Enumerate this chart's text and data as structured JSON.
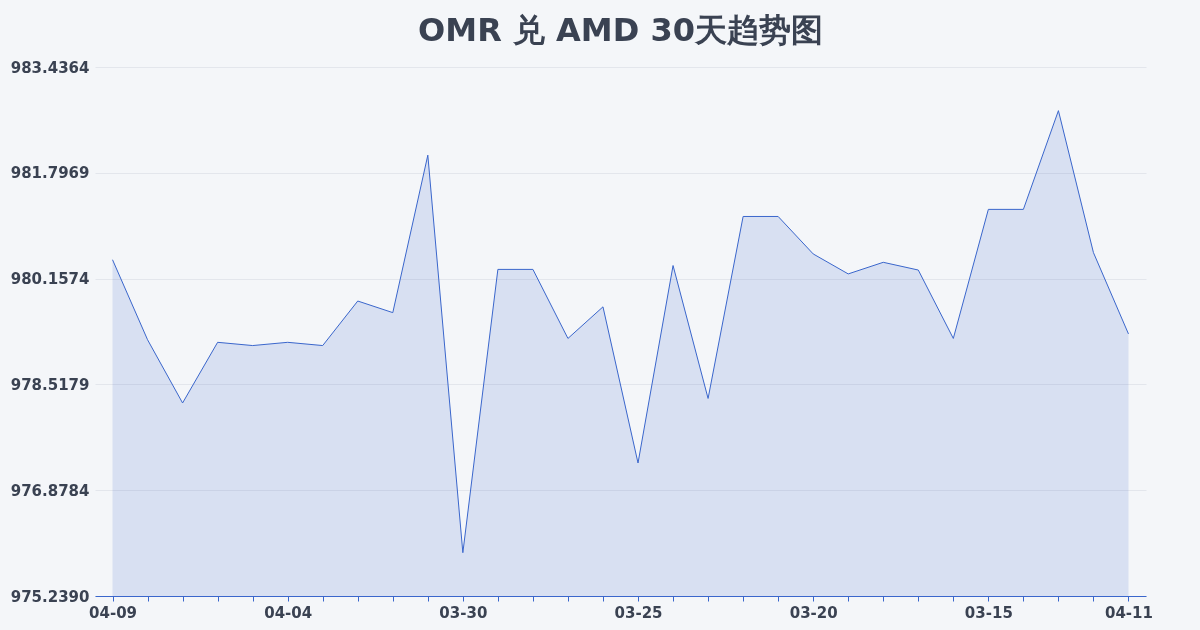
{
  "chart_data": {
    "type": "area",
    "title": "OMR 兑 AMD 30天趋势图",
    "categories": [
      "04-09",
      null,
      null,
      null,
      null,
      "04-04",
      null,
      null,
      null,
      null,
      "03-30",
      null,
      null,
      null,
      null,
      "03-25",
      null,
      null,
      null,
      null,
      "03-20",
      null,
      null,
      null,
      null,
      "03-15",
      null,
      null,
      null,
      "04-11"
    ],
    "series": [
      {
        "color": "#3a66cc",
        "values": [
          980.45,
          979.21,
          978.23,
          979.17,
          979.12,
          979.17,
          979.12,
          979.81,
          979.63,
          982.07,
          975.91,
          980.3,
          980.3,
          979.23,
          979.72,
          977.3,
          980.36,
          978.3,
          981.12,
          981.12,
          980.54,
          980.23,
          980.41,
          980.29,
          979.23,
          981.23,
          981.23,
          982.76,
          980.56,
          979.3
        ]
      }
    ],
    "ylim": [
      975.239,
      983.4364
    ],
    "yticks": [
      {
        "value": 975.239,
        "label": "975.2390"
      },
      {
        "value": 976.8784,
        "label": "976.8784"
      },
      {
        "value": 978.5179,
        "label": "978.5179"
      },
      {
        "value": 980.1574,
        "label": "980.1574"
      },
      {
        "value": 981.7969,
        "label": "981.7969"
      },
      {
        "value": 983.4364,
        "label": "983.4364"
      }
    ],
    "grid": "y"
  }
}
